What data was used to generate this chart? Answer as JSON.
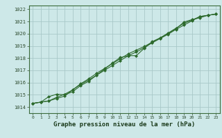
{
  "title": "Graphe pression niveau de la mer (hPa)",
  "bg_color": "#cde8e8",
  "plot_bg_color": "#cde8e8",
  "grid_color": "#a8c8c8",
  "line_color": "#2d6a2d",
  "marker_color": "#2d6a2d",
  "xlim": [
    -0.5,
    23.5
  ],
  "ylim": [
    1013.5,
    1022.3
  ],
  "xtick_labels": [
    "0",
    "1",
    "2",
    "3",
    "4",
    "5",
    "6",
    "7",
    "8",
    "9",
    "10",
    "11",
    "12",
    "13",
    "14",
    "15",
    "16",
    "17",
    "18",
    "19",
    "20",
    "21",
    "22",
    "23"
  ],
  "ytick_labels": [
    "1014",
    "1015",
    "1016",
    "1017",
    "1018",
    "1019",
    "1020",
    "1021",
    "1022"
  ],
  "ytick_vals": [
    1014,
    1015,
    1016,
    1017,
    1018,
    1019,
    1020,
    1021,
    1022
  ],
  "series1_x": [
    0,
    1,
    2,
    3,
    4,
    5,
    6,
    7,
    8,
    9,
    10,
    11,
    12,
    13,
    14,
    15,
    16,
    17,
    18,
    19,
    20,
    21,
    22,
    23
  ],
  "series1_y": [
    1014.3,
    1014.4,
    1014.5,
    1014.8,
    1015.05,
    1015.4,
    1015.85,
    1016.2,
    1016.6,
    1017.0,
    1017.4,
    1017.8,
    1018.2,
    1018.5,
    1018.85,
    1019.25,
    1019.6,
    1019.95,
    1020.35,
    1020.7,
    1021.05,
    1021.4,
    1021.5,
    1021.6
  ],
  "series2_x": [
    0,
    1,
    2,
    3,
    4,
    5,
    6,
    7,
    8,
    9,
    10,
    11,
    12,
    13,
    14,
    15,
    16,
    17,
    18,
    19,
    20,
    21,
    22,
    23
  ],
  "series2_y": [
    1014.3,
    1014.4,
    1014.85,
    1015.05,
    1015.0,
    1015.25,
    1015.75,
    1016.1,
    1016.6,
    1017.1,
    1017.6,
    1018.05,
    1018.2,
    1018.2,
    1018.8,
    1019.35,
    1019.65,
    1020.05,
    1020.45,
    1020.85,
    1021.1,
    1021.4,
    1021.5,
    1021.6
  ],
  "series3_x": [
    0,
    1,
    2,
    3,
    4,
    5,
    6,
    7,
    8,
    9,
    10,
    11,
    12,
    13,
    14,
    15,
    16,
    17,
    18,
    19,
    20,
    21,
    22,
    23
  ],
  "series3_y": [
    1014.3,
    1014.4,
    1014.5,
    1014.7,
    1014.9,
    1015.4,
    1015.9,
    1016.3,
    1016.75,
    1017.15,
    1017.55,
    1017.95,
    1018.35,
    1018.65,
    1018.95,
    1019.3,
    1019.65,
    1020.0,
    1020.4,
    1020.95,
    1021.15,
    1021.3,
    1021.5,
    1021.6
  ]
}
